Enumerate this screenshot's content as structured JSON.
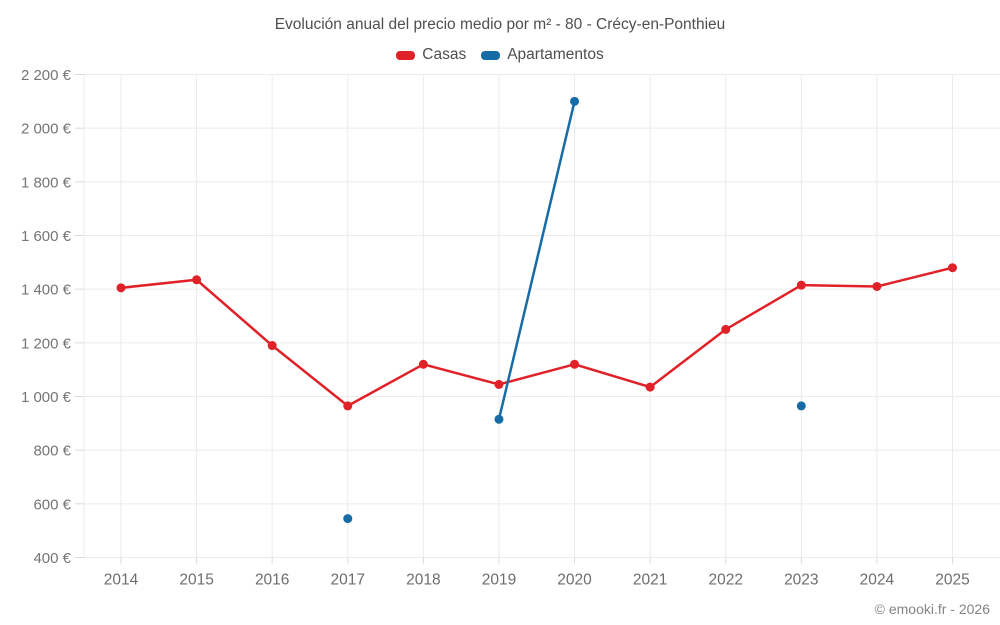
{
  "title": "Evolución anual del precio medio por m² - 80 - Crécy-en-Ponthieu",
  "footer": "© emooki.fr - 2026",
  "legend": [
    {
      "label": "Casas",
      "color": "#e02128"
    },
    {
      "label": "Apartamentos",
      "color": "#176ca6"
    }
  ],
  "chart_data": {
    "type": "line",
    "title": "Evolución anual del precio medio por m² - 80 - Crécy-en-Ponthieu",
    "categories": [
      "2014",
      "2015",
      "2016",
      "2017",
      "2018",
      "2019",
      "2020",
      "2021",
      "2022",
      "2023",
      "2024",
      "2025"
    ],
    "series": [
      {
        "name": "Casas",
        "color": "#e02128",
        "values": [
          1405,
          1435,
          1190,
          965,
          1120,
          1045,
          1120,
          1035,
          1250,
          1415,
          1410,
          1480
        ]
      },
      {
        "name": "Apartamentos",
        "color": "#176ca6",
        "values": [
          null,
          null,
          null,
          545,
          null,
          915,
          2100,
          null,
          null,
          965,
          null,
          null
        ]
      }
    ],
    "ylim": [
      400,
      2200
    ],
    "ytick_step": 200,
    "ytick_labels": [
      "400 €",
      "600 €",
      "800 €",
      "1 000 €",
      "1 200 €",
      "1 400 €",
      "1 600 €",
      "1 800 €",
      "2 000 €",
      "2 200 €"
    ],
    "xlabel": "",
    "ylabel": "",
    "grid": true,
    "legend_position": "top",
    "colors": {
      "gridline": "#ebebeb",
      "tick": "#d9d9d9",
      "ytick_text": "#757575",
      "xtick_text": "#6e6e6e"
    }
  }
}
